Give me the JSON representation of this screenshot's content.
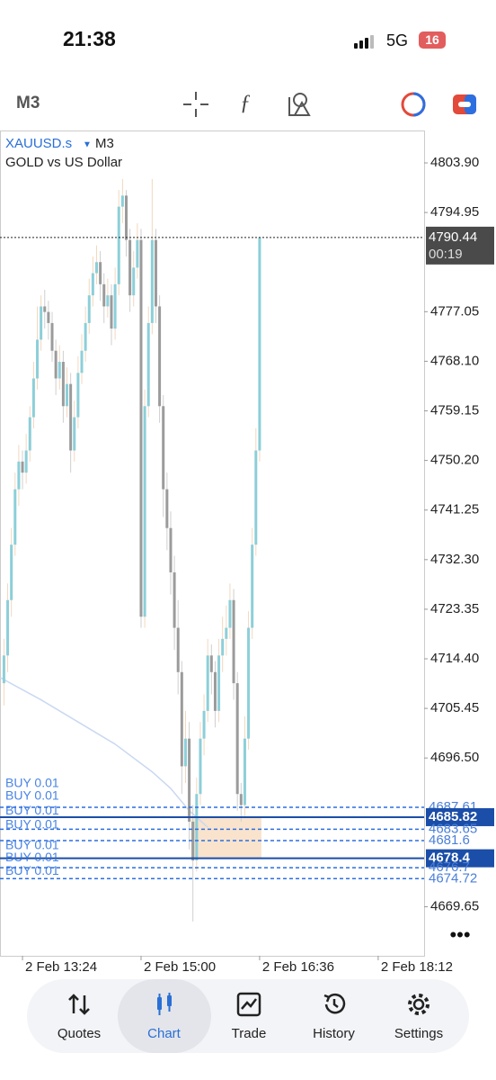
{
  "status_bar": {
    "time": "21:38",
    "network": "5G",
    "battery": "16"
  },
  "toolbar": {
    "timeframe": "M3"
  },
  "chart_data": {
    "type": "candlestick",
    "symbol": "XAUUSD.s",
    "timeframe": "M3",
    "description": "GOLD vs US Dollar",
    "ylim": [
      4660.8,
      4809.75
    ],
    "yticks": [
      {
        "value": 4803.9,
        "label": "4803.90"
      },
      4794.95,
      4777.05,
      {
        "value": 4768.1,
        "label": "4768.10"
      },
      4759.15,
      {
        "value": 4750.2,
        "label": "4750.20"
      },
      4741.25,
      {
        "value": 4732.3,
        "label": "4732.30"
      },
      4723.35,
      {
        "value": 4714.4,
        "label": "4714.40"
      },
      4705.45,
      {
        "value": 4696.5,
        "label": "4696.50"
      },
      4669.65
    ],
    "xlim": [
      -1.07,
      113.4
    ],
    "xticks": [
      {
        "value": 5,
        "label": "2 Feb 13:24"
      },
      {
        "value": 37,
        "label": "2 Feb 15:00"
      },
      {
        "value": 69,
        "label": "2 Feb 16:36"
      },
      {
        "value": 101,
        "label": "2 Feb 18:12"
      }
    ],
    "current_price": 4790.44,
    "countdown": "00:19",
    "bull_color": "#8ccfd9",
    "bear_color": "#9b9b9b",
    "wick_color": "#f3d7bd",
    "candles": [
      [
        4710,
        4718,
        4706,
        4715
      ],
      [
        4715,
        4728,
        4712,
        4725
      ],
      [
        4725,
        4738,
        4722,
        4735
      ],
      [
        4735,
        4748,
        4733,
        4745
      ],
      [
        4745,
        4753,
        4742,
        4750
      ],
      [
        4750,
        4752,
        4745,
        4748
      ],
      [
        4748,
        4755,
        4746,
        4752
      ],
      [
        4752,
        4760,
        4750,
        4758
      ],
      [
        4758,
        4768,
        4756,
        4765
      ],
      [
        4765,
        4778,
        4763,
        4772
      ],
      [
        4772,
        4780,
        4770,
        4778
      ],
      [
        4778,
        4781,
        4774,
        4777
      ],
      [
        4777,
        4779,
        4772,
        4775
      ],
      [
        4775,
        4777,
        4768,
        4770
      ],
      [
        4770,
        4772,
        4762,
        4765
      ],
      [
        4765,
        4771,
        4763,
        4768
      ],
      [
        4768,
        4770,
        4757,
        4760
      ],
      [
        4760,
        4767,
        4758,
        4764
      ],
      [
        4764,
        4766,
        4748,
        4752
      ],
      [
        4752,
        4761,
        4750,
        4758
      ],
      [
        4758,
        4769,
        4756,
        4766
      ],
      [
        4766,
        4773,
        4764,
        4770
      ],
      [
        4770,
        4778,
        4768,
        4775
      ],
      [
        4775,
        4783,
        4773,
        4780
      ],
      [
        4780,
        4787,
        4778,
        4784
      ],
      [
        4784,
        4789,
        4782,
        4786
      ],
      [
        4786,
        4788,
        4779,
        4782
      ],
      [
        4782,
        4784,
        4775,
        4778
      ],
      [
        4778,
        4783,
        4776,
        4780
      ],
      [
        4780,
        4782,
        4771,
        4774
      ],
      [
        4774,
        4785,
        4772,
        4782
      ],
      [
        4782,
        4799,
        4780,
        4796
      ],
      [
        4796,
        4801,
        4793,
        4798
      ],
      [
        4798,
        4799,
        4787,
        4790
      ],
      [
        4790,
        4792,
        4777,
        4780
      ],
      [
        4780,
        4788,
        4778,
        4785
      ],
      [
        4785,
        4793,
        4783,
        4790
      ],
      [
        4790,
        4792,
        4720,
        4722
      ],
      [
        4722,
        4763,
        4720,
        4760
      ],
      [
        4760,
        4778,
        4758,
        4775
      ],
      [
        4775,
        4801,
        4773,
        4790
      ],
      [
        4790,
        4792,
        4775,
        4778
      ],
      [
        4778,
        4780,
        4757,
        4760
      ],
      [
        4760,
        4762,
        4740,
        4745
      ],
      [
        4745,
        4748,
        4734,
        4738
      ],
      [
        4738,
        4741,
        4726,
        4730
      ],
      [
        4730,
        4733,
        4716,
        4720
      ],
      [
        4720,
        4725,
        4708,
        4712
      ],
      [
        4712,
        4714,
        4690,
        4695
      ],
      [
        4695,
        4705,
        4692,
        4700
      ],
      [
        4700,
        4703,
        4680,
        4685
      ],
      [
        4685,
        4688,
        4667,
        4678
      ],
      [
        4678,
        4693,
        4676,
        4690
      ],
      [
        4690,
        4703,
        4688,
        4700
      ],
      [
        4700,
        4708,
        4697,
        4705
      ],
      [
        4705,
        4718,
        4703,
        4715
      ],
      [
        4715,
        4717,
        4708,
        4712
      ],
      [
        4712,
        4714,
        4702,
        4705
      ],
      [
        4705,
        4718,
        4703,
        4715
      ],
      [
        4715,
        4722,
        4712,
        4718
      ],
      [
        4718,
        4724,
        4715,
        4720
      ],
      [
        4720,
        4728,
        4718,
        4725
      ],
      [
        4725,
        4727,
        4707,
        4710
      ],
      [
        4710,
        4712,
        4687,
        4690
      ],
      [
        4690,
        4692,
        4685,
        4688
      ],
      [
        4688,
        4704,
        4686,
        4700
      ],
      [
        4700,
        4723,
        4698,
        4720
      ],
      [
        4720,
        4738,
        4718,
        4735
      ],
      [
        4735,
        4756,
        4733,
        4752
      ],
      [
        4752,
        4790.44,
        4750,
        4790.44
      ]
    ],
    "moving_average": {
      "x": [
        -1,
        10,
        20,
        30,
        40,
        45,
        50,
        55
      ],
      "values": [
        4711,
        4707,
        4703,
        4699,
        4694,
        4691,
        4687,
        4684
      ],
      "color": "#c9d8f2"
    },
    "order_color": "#2b6fe0",
    "orders": [
      {
        "label": "BUY 0.01",
        "price": 4687.61,
        "selected": false
      },
      {
        "label": "BUY 0.01",
        "price": 4685.82,
        "selected": true
      },
      {
        "label": "BUY 0.01",
        "price": 4683.65,
        "selected": false
      },
      {
        "label": "BUY 0.01",
        "price": 4681.6,
        "selected": false
      },
      {
        "label": "BUY 0.01",
        "price": 4678.4,
        "selected": true
      },
      {
        "label": "BUY 0.01",
        "price": 4676.7,
        "selected": false
      },
      {
        "label": "BUY 0.01",
        "price": 4674.72,
        "selected": false
      }
    ]
  },
  "nav": {
    "items": [
      "Quotes",
      "Chart",
      "Trade",
      "History",
      "Settings"
    ],
    "active_index": 1
  }
}
